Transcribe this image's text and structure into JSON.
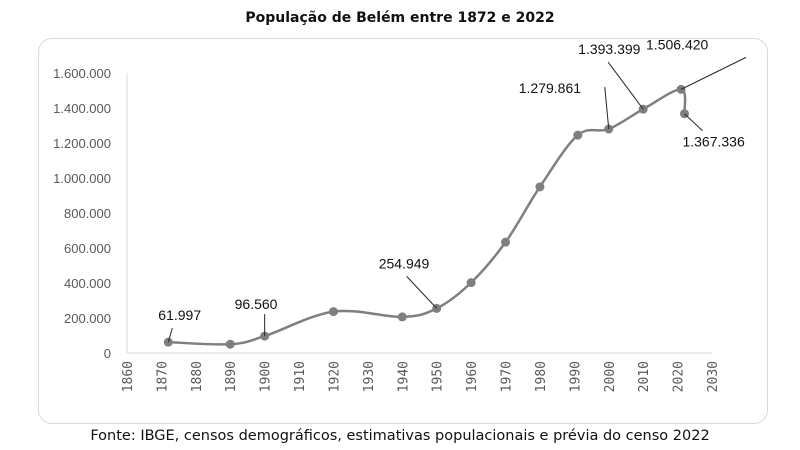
{
  "chart_data": {
    "type": "line",
    "title": "População de Belém entre 1872 e 2022",
    "source": "Fonte: IBGE, censos demográficos, estimativas populacionais e prévia do censo 2022",
    "xlabel": "",
    "ylabel": "",
    "xlim": [
      1860,
      2030
    ],
    "ylim": [
      0,
      1600000
    ],
    "x_ticks": [
      "1860",
      "1870",
      "1880",
      "1890",
      "1900",
      "1910",
      "1920",
      "1930",
      "1940",
      "1950",
      "1960",
      "1970",
      "1980",
      "1990",
      "2000",
      "2010",
      "2020",
      "2030"
    ],
    "y_ticks": [
      "0",
      "200.000",
      "400.000",
      "600.000",
      "800.000",
      "1.000.000",
      "1.200.000",
      "1.400.000",
      "1.600.000"
    ],
    "series": [
      {
        "name": "População",
        "color": "#7f7f7f",
        "x": [
          1872,
          1890,
          1900,
          1920,
          1940,
          1950,
          1960,
          1970,
          1980,
          1991,
          2000,
          2010,
          2021,
          2022
        ],
        "y": [
          61997,
          50064,
          96560,
          236402,
          206331,
          254949,
          402170,
          633374,
          949545,
          1244689,
          1279861,
          1393399,
          1506420,
          1367336
        ]
      }
    ],
    "data_labels": [
      {
        "index": 0,
        "text": "61.997"
      },
      {
        "index": 2,
        "text": "96.560"
      },
      {
        "index": 5,
        "text": "254.949"
      },
      {
        "index": 10,
        "text": "1.279.861"
      },
      {
        "index": 11,
        "text": "1.393.399"
      },
      {
        "index": 12,
        "text": "1.506.420"
      },
      {
        "index": 13,
        "text": "1.367.336"
      }
    ]
  }
}
